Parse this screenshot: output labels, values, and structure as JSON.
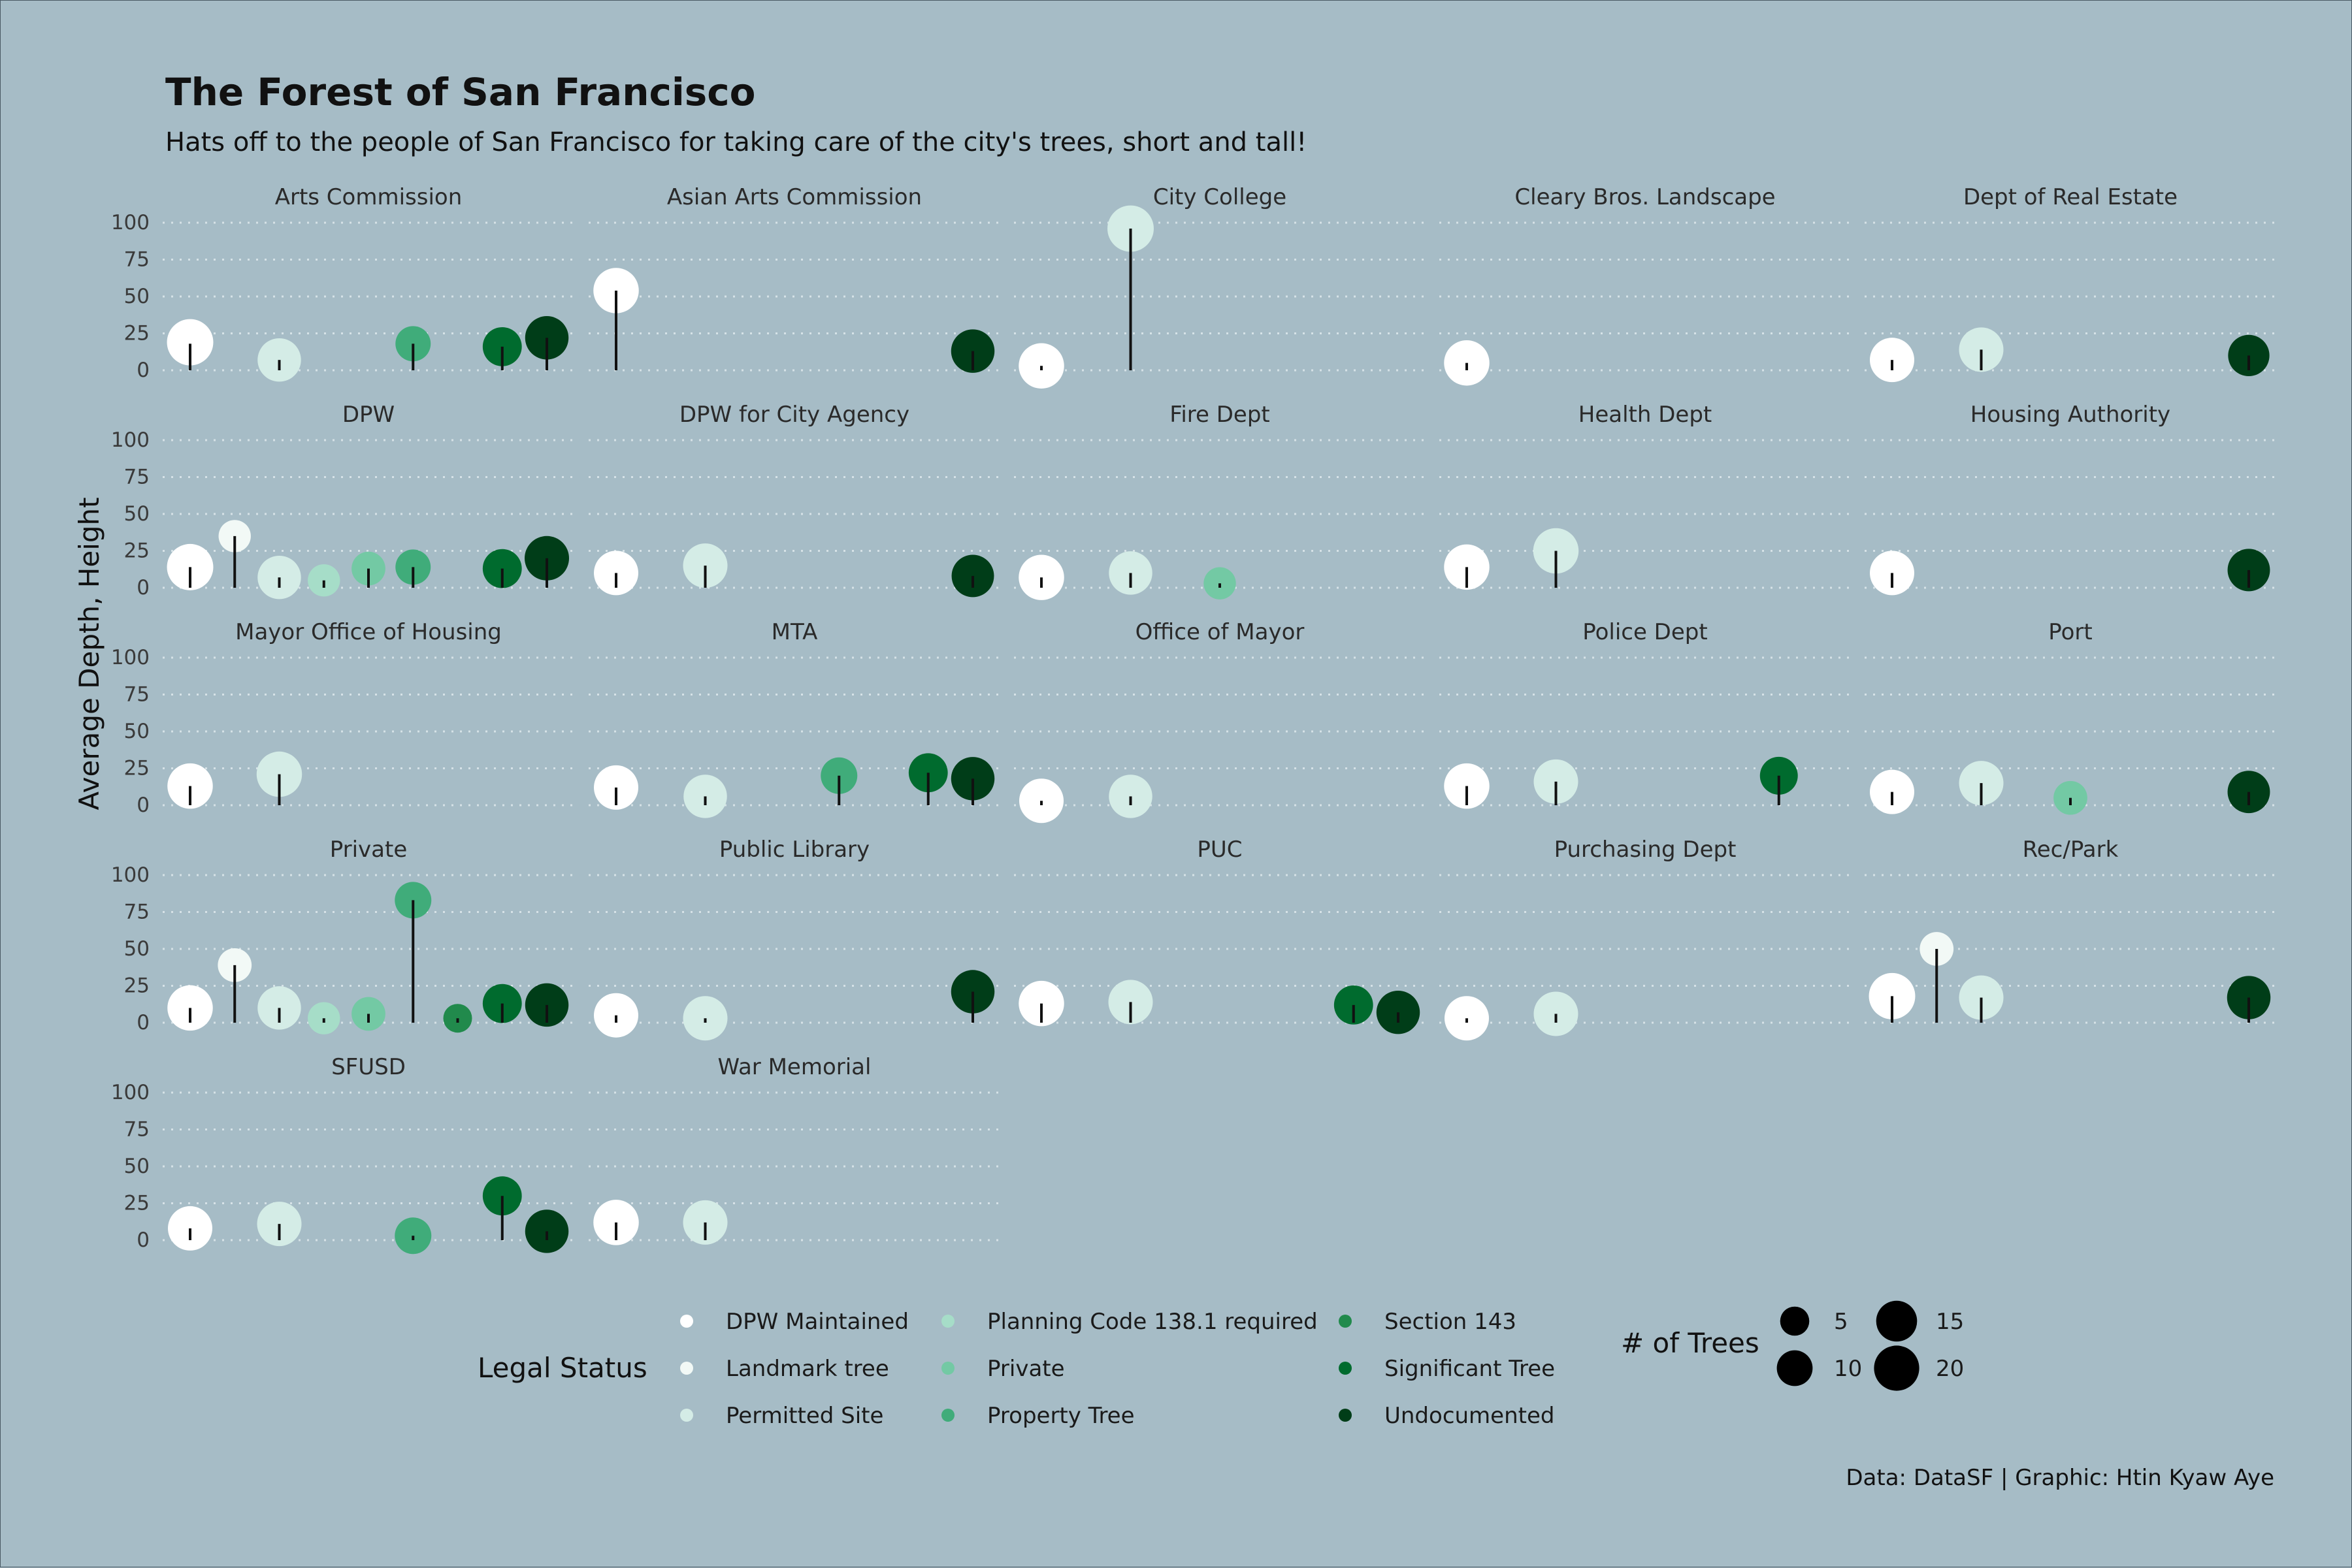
{
  "chart_data": {
    "type": "scatter",
    "title": "The Forest of San Francisco",
    "subtitle": "Hats off to the people of San Francisco for taking care of the city's trees, short and tall!",
    "ylabel": "Average Depth, Height",
    "caption": "Data: DataSF | Graphic: Htin Kyaw Aye",
    "ylim": [
      0,
      100
    ],
    "yticks": [
      "0",
      "25",
      "50",
      "75",
      "100"
    ],
    "grid": true,
    "legend_position": "bottom",
    "categories": [
      "DPW Maintained",
      "Landmark tree",
      "Permitted Site",
      "Planning Code 138.1 required",
      "Private",
      "Property Tree",
      "Section 143",
      "Significant Tree",
      "Undocumented"
    ],
    "colors": [
      "#ffffff",
      "#f2f9f6",
      "#d4ece6",
      "#a6ddc8",
      "#73c9a4",
      "#40ac7a",
      "#218a4c",
      "#006b2e",
      "#003d18"
    ],
    "legend": {
      "color_title": "Legal Status",
      "size_title": "# of Trees",
      "sizes": [
        5,
        10,
        15,
        20
      ]
    },
    "panels": [
      {
        "name": "Arts Commission",
        "points": [
          {
            "category": "DPW Maintained",
            "height": 19,
            "depth": 18,
            "trees": 18
          },
          {
            "category": "Permitted Site",
            "height": 7,
            "depth": 7,
            "trees": 15
          },
          {
            "category": "Property Tree",
            "height": 18,
            "depth": 18,
            "trees": 8
          },
          {
            "category": "Significant Tree",
            "height": 16,
            "depth": 16,
            "trees": 11
          },
          {
            "category": "Undocumented",
            "height": 22,
            "depth": 22,
            "trees": 15
          }
        ]
      },
      {
        "name": "Asian Arts Commission",
        "points": [
          {
            "category": "DPW Maintained",
            "height": 54,
            "depth": 54,
            "trees": 17
          },
          {
            "category": "Undocumented",
            "height": 13,
            "depth": 13,
            "trees": 15
          }
        ]
      },
      {
        "name": "City College",
        "points": [
          {
            "category": "DPW Maintained",
            "height": 3,
            "depth": 3,
            "trees": 17
          },
          {
            "category": "Permitted Site",
            "height": 96,
            "depth": 96,
            "trees": 18
          }
        ]
      },
      {
        "name": "Cleary Bros. Landscape",
        "points": [
          {
            "category": "DPW Maintained",
            "height": 5,
            "depth": 5,
            "trees": 17
          }
        ]
      },
      {
        "name": "Dept of Real Estate",
        "points": [
          {
            "category": "DPW Maintained",
            "height": 7,
            "depth": 7,
            "trees": 16
          },
          {
            "category": "Permitted Site",
            "height": 14,
            "depth": 14,
            "trees": 16
          },
          {
            "category": "Undocumented",
            "height": 10,
            "depth": 10,
            "trees": 13
          }
        ]
      },
      {
        "name": "DPW",
        "points": [
          {
            "category": "DPW Maintained",
            "height": 14,
            "depth": 14,
            "trees": 18
          },
          {
            "category": "Landmark tree",
            "height": 35,
            "depth": 35,
            "trees": 6
          },
          {
            "category": "Permitted Site",
            "height": 7,
            "depth": 7,
            "trees": 15
          },
          {
            "category": "Planning Code 138.1 required",
            "height": 5,
            "depth": 5,
            "trees": 6
          },
          {
            "category": "Private",
            "height": 13,
            "depth": 13,
            "trees": 7
          },
          {
            "category": "Property Tree",
            "height": 14,
            "depth": 14,
            "trees": 8
          },
          {
            "category": "Significant Tree",
            "height": 13,
            "depth": 13,
            "trees": 11
          },
          {
            "category": "Undocumented",
            "height": 20,
            "depth": 20,
            "trees": 16
          }
        ]
      },
      {
        "name": "DPW for City Agency",
        "points": [
          {
            "category": "DPW Maintained",
            "height": 10,
            "depth": 10,
            "trees": 16
          },
          {
            "category": "Permitted Site",
            "height": 15,
            "depth": 15,
            "trees": 16
          },
          {
            "category": "Undocumented",
            "height": 8,
            "depth": 8,
            "trees": 14
          }
        ]
      },
      {
        "name": "Fire Dept",
        "points": [
          {
            "category": "DPW Maintained",
            "height": 7,
            "depth": 7,
            "trees": 17
          },
          {
            "category": "Permitted Site",
            "height": 10,
            "depth": 10,
            "trees": 15
          },
          {
            "category": "Private",
            "height": 3,
            "depth": 3,
            "trees": 6
          }
        ]
      },
      {
        "name": "Health Dept",
        "points": [
          {
            "category": "DPW Maintained",
            "height": 14,
            "depth": 14,
            "trees": 17
          },
          {
            "category": "Permitted Site",
            "height": 25,
            "depth": 25,
            "trees": 17
          }
        ]
      },
      {
        "name": "Housing Authority",
        "points": [
          {
            "category": "DPW Maintained",
            "height": 10,
            "depth": 10,
            "trees": 16
          },
          {
            "category": "Undocumented",
            "height": 12,
            "depth": 12,
            "trees": 14
          }
        ]
      },
      {
        "name": "Mayor Office of Housing",
        "points": [
          {
            "category": "DPW Maintained",
            "height": 13,
            "depth": 13,
            "trees": 17
          },
          {
            "category": "Permitted Site",
            "height": 21,
            "depth": 21,
            "trees": 17
          }
        ]
      },
      {
        "name": "MTA",
        "points": [
          {
            "category": "DPW Maintained",
            "height": 12,
            "depth": 12,
            "trees": 16
          },
          {
            "category": "Permitted Site",
            "height": 6,
            "depth": 6,
            "trees": 15
          },
          {
            "category": "Property Tree",
            "height": 20,
            "depth": 20,
            "trees": 9
          },
          {
            "category": "Significant Tree",
            "height": 22,
            "depth": 22,
            "trees": 11
          },
          {
            "category": "Undocumented",
            "height": 18,
            "depth": 18,
            "trees": 15
          }
        ]
      },
      {
        "name": "Office of Mayor",
        "points": [
          {
            "category": "DPW Maintained",
            "height": 3,
            "depth": 3,
            "trees": 16
          },
          {
            "category": "Permitted Site",
            "height": 6,
            "depth": 6,
            "trees": 15
          }
        ]
      },
      {
        "name": "Police Dept",
        "points": [
          {
            "category": "DPW Maintained",
            "height": 13,
            "depth": 13,
            "trees": 17
          },
          {
            "category": "Permitted Site",
            "height": 16,
            "depth": 16,
            "trees": 16
          },
          {
            "category": "Significant Tree",
            "height": 20,
            "depth": 20,
            "trees": 10
          }
        ]
      },
      {
        "name": "Port",
        "points": [
          {
            "category": "DPW Maintained",
            "height": 9,
            "depth": 9,
            "trees": 16
          },
          {
            "category": "Permitted Site",
            "height": 15,
            "depth": 15,
            "trees": 16
          },
          {
            "category": "Private",
            "height": 5,
            "depth": 5,
            "trees": 7
          },
          {
            "category": "Undocumented",
            "height": 9,
            "depth": 9,
            "trees": 14
          }
        ]
      },
      {
        "name": "Private",
        "points": [
          {
            "category": "DPW Maintained",
            "height": 10,
            "depth": 10,
            "trees": 17
          },
          {
            "category": "Landmark tree",
            "height": 39,
            "depth": 39,
            "trees": 7
          },
          {
            "category": "Permitted Site",
            "height": 10,
            "depth": 10,
            "trees": 15
          },
          {
            "category": "Planning Code 138.1 required",
            "height": 3,
            "depth": 3,
            "trees": 6
          },
          {
            "category": "Private",
            "height": 6,
            "depth": 6,
            "trees": 7
          },
          {
            "category": "Property Tree",
            "height": 83,
            "depth": 83,
            "trees": 9
          },
          {
            "category": "Section 143",
            "height": 3,
            "depth": 3,
            "trees": 4
          },
          {
            "category": "Significant Tree",
            "height": 13,
            "depth": 13,
            "trees": 11
          },
          {
            "category": "Undocumented",
            "height": 12,
            "depth": 12,
            "trees": 15
          }
        ]
      },
      {
        "name": "Public Library",
        "points": [
          {
            "category": "DPW Maintained",
            "height": 5,
            "depth": 5,
            "trees": 16
          },
          {
            "category": "Permitted Site",
            "height": 3,
            "depth": 3,
            "trees": 16
          },
          {
            "category": "Undocumented",
            "height": 21,
            "depth": 21,
            "trees": 15
          }
        ]
      },
      {
        "name": "PUC",
        "points": [
          {
            "category": "DPW Maintained",
            "height": 13,
            "depth": 13,
            "trees": 17
          },
          {
            "category": "Permitted Site",
            "height": 14,
            "depth": 14,
            "trees": 16
          },
          {
            "category": "Significant Tree",
            "height": 12,
            "depth": 12,
            "trees": 11
          },
          {
            "category": "Undocumented",
            "height": 7,
            "depth": 7,
            "trees": 15
          }
        ]
      },
      {
        "name": "Purchasing Dept",
        "points": [
          {
            "category": "DPW Maintained",
            "height": 3,
            "depth": 3,
            "trees": 16
          },
          {
            "category": "Permitted Site",
            "height": 6,
            "depth": 6,
            "trees": 16
          }
        ]
      },
      {
        "name": "Rec/Park",
        "points": [
          {
            "category": "DPW Maintained",
            "height": 18,
            "depth": 18,
            "trees": 18
          },
          {
            "category": "Landmark tree",
            "height": 50,
            "depth": 50,
            "trees": 7
          },
          {
            "category": "Permitted Site",
            "height": 17,
            "depth": 17,
            "trees": 16
          },
          {
            "category": "Undocumented",
            "height": 17,
            "depth": 17,
            "trees": 15
          }
        ]
      },
      {
        "name": "SFUSD",
        "points": [
          {
            "category": "DPW Maintained",
            "height": 8,
            "depth": 8,
            "trees": 16
          },
          {
            "category": "Permitted Site",
            "height": 11,
            "depth": 11,
            "trees": 16
          },
          {
            "category": "Property Tree",
            "height": 3,
            "depth": 3,
            "trees": 9
          },
          {
            "category": "Significant Tree",
            "height": 30,
            "depth": 30,
            "trees": 11
          },
          {
            "category": "Undocumented",
            "height": 6,
            "depth": 6,
            "trees": 15
          }
        ]
      },
      {
        "name": "War Memorial",
        "points": [
          {
            "category": "DPW Maintained",
            "height": 12,
            "depth": 12,
            "trees": 17
          },
          {
            "category": "Permitted Site",
            "height": 12,
            "depth": 12,
            "trees": 16
          }
        ]
      }
    ]
  }
}
